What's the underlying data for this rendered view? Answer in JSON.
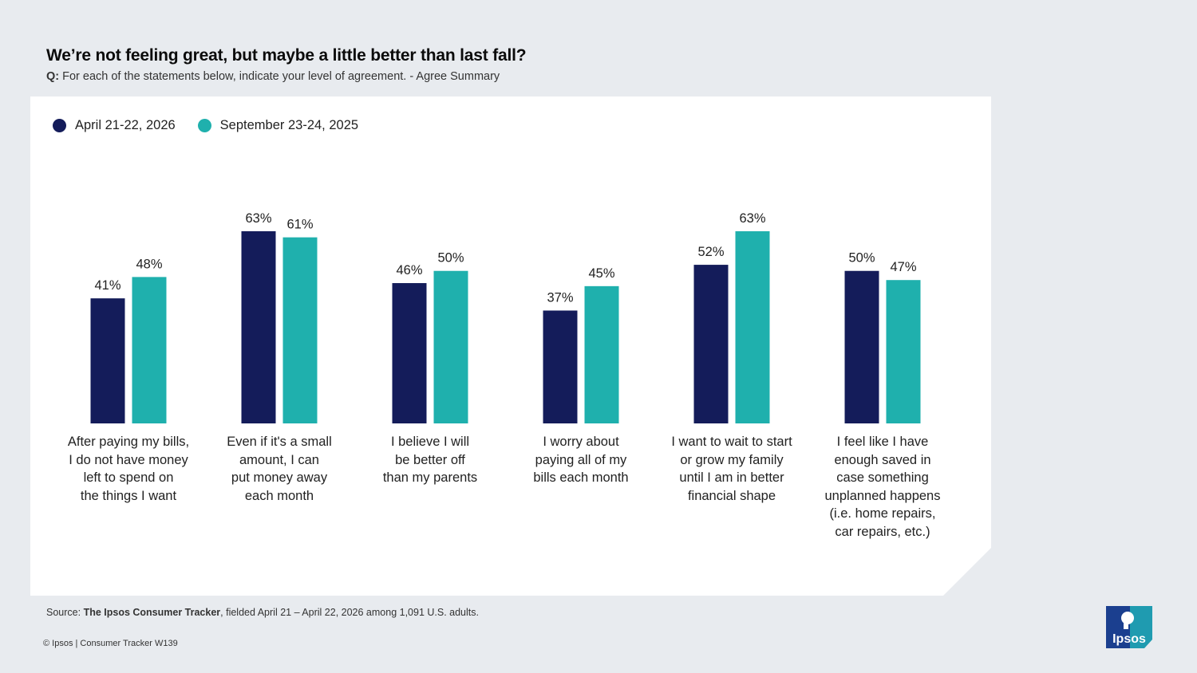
{
  "header": {
    "title": "We’re not feeling great, but maybe a little better than last fall?",
    "question_prefix": "Q:",
    "question": "For each of the statements below, indicate your level of agreement. - Agree Summary"
  },
  "legend": [
    {
      "label": "April 21-22, 2026",
      "color": "#141c5a"
    },
    {
      "label": "September 23-24, 2025",
      "color": "#1fb0ad"
    }
  ],
  "chart_data": {
    "type": "bar",
    "categories": [
      "After paying my bills,\nI do not have money\nleft to spend on\nthe things I want",
      "Even if it's a small\namount, I can\nput money away\neach month",
      "I believe I will\nbe better off\nthan my parents",
      "I worry about\npaying all of my\nbills each month",
      "I want to wait to start\nor grow my family\nuntil I am in better\nfinancial shape",
      "I feel like I have\nenough saved in\ncase something\nunplanned happens\n(i.e. home repairs,\ncar repairs, etc.)"
    ],
    "series": [
      {
        "name": "April 21-22, 2026",
        "color": "#141c5a",
        "values": [
          41,
          63,
          46,
          37,
          52,
          50
        ]
      },
      {
        "name": "September 23-24, 2025",
        "color": "#1fb0ad",
        "values": [
          48,
          61,
          50,
          45,
          63,
          47
        ]
      }
    ],
    "value_suffix": "%",
    "ylim": [
      0,
      63
    ],
    "grid": false,
    "legend_position": "top-left"
  },
  "footer": {
    "source_prefix": "Source: ",
    "source_bold": "The Ipsos Consumer Tracker",
    "source_rest": ", fielded April 21 – April 22, 2026 among 1,091 U.S. adults.",
    "copyright": "© Ipsos | Consumer Tracker W139"
  },
  "logo": {
    "text": "Ipsos",
    "color": "#1f9bb0",
    "icon": "ipsos-logo-icon"
  }
}
